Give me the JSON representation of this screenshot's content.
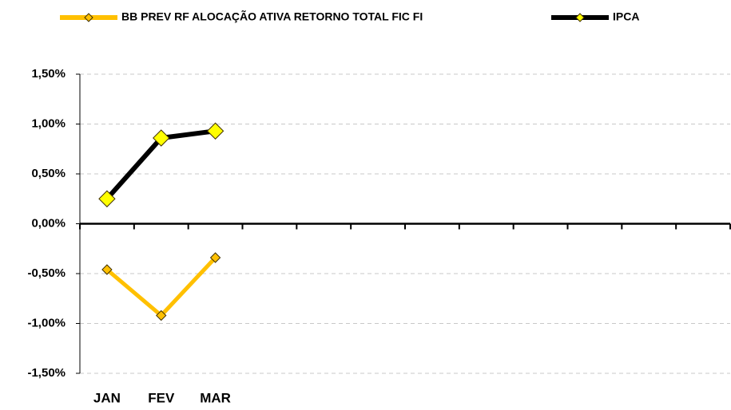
{
  "chart_data": {
    "type": "line",
    "categories": [
      "JAN",
      "FEV",
      "MAR",
      null,
      null,
      null,
      null,
      null,
      null,
      null,
      null,
      null
    ],
    "series": [
      {
        "name": "BB PREV RF ALOCAÇÃO ATIVA RETORNO TOTAL FIC FI",
        "color": "#ffc000",
        "marker_color": "#ffc000",
        "values": [
          -0.46,
          -0.92,
          -0.34,
          null,
          null,
          null,
          null,
          null,
          null,
          null,
          null,
          null
        ]
      },
      {
        "name": "IPCA",
        "color": "#000000",
        "marker_color": "#ffff00",
        "values": [
          0.25,
          0.86,
          0.93,
          null,
          null,
          null,
          null,
          null,
          null,
          null,
          null,
          null
        ]
      }
    ],
    "ylim": [
      -1.5,
      1.5
    ],
    "yticks": [
      {
        "value": -1.5,
        "label": "-1,50%"
      },
      {
        "value": -1.0,
        "label": "-1,00%"
      },
      {
        "value": -0.5,
        "label": "-0,50%"
      },
      {
        "value": 0,
        "label": "0,00%"
      },
      {
        "value": 0.5,
        "label": "0,50%"
      },
      {
        "value": 1.0,
        "label": "1,00%"
      },
      {
        "value": 1.5,
        "label": "1,50%"
      }
    ],
    "grid": true,
    "legend": "top"
  }
}
